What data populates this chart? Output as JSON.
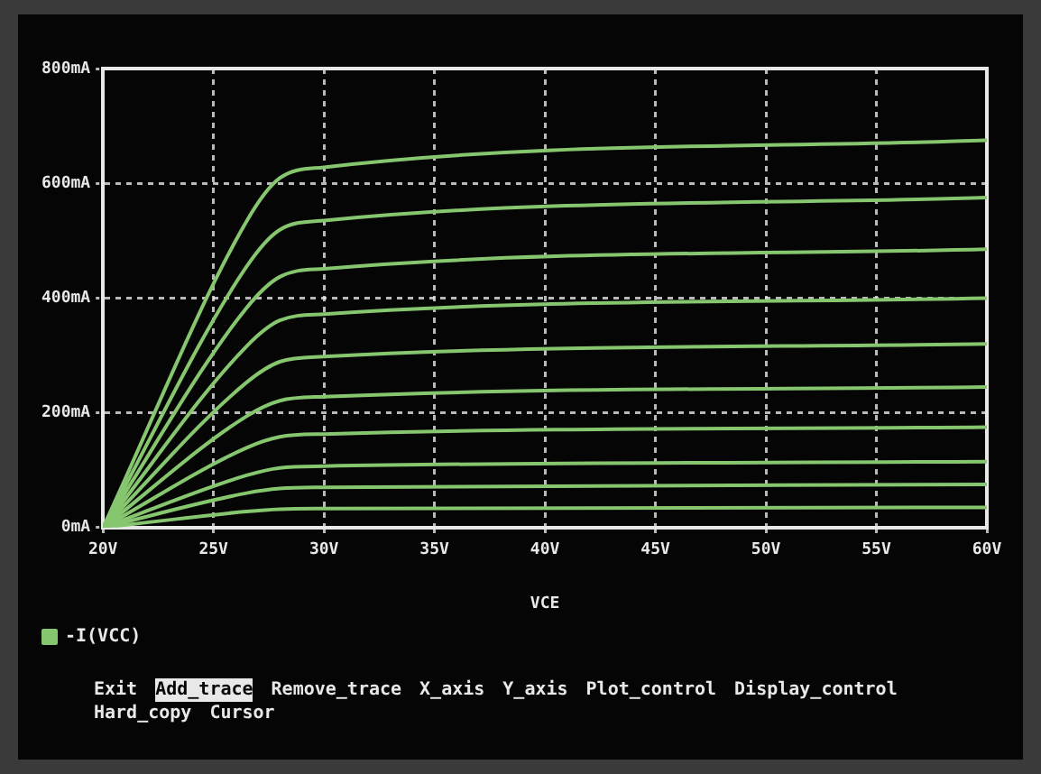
{
  "chart_data": {
    "type": "line",
    "xlabel": "VCE",
    "x": [
      20,
      26.5,
      28,
      30,
      60
    ],
    "series": [
      {
        "name": "-I(VCC)",
        "color": "#86c66e",
        "values": [
          0,
          534,
          609,
          628,
          675
        ]
      },
      {
        "color": "#86c66e",
        "values": [
          0,
          455,
          519,
          535,
          575
        ]
      },
      {
        "color": "#86c66e",
        "values": [
          0,
          383,
          437,
          451,
          485
        ]
      },
      {
        "color": "#86c66e",
        "values": [
          0,
          316,
          361,
          372,
          400
        ]
      },
      {
        "color": "#86c66e",
        "values": [
          0,
          253,
          289,
          298,
          320
        ]
      },
      {
        "color": "#86c66e",
        "values": [
          0,
          194,
          221,
          228,
          245
        ]
      },
      {
        "color": "#86c66e",
        "values": [
          0,
          139,
          158,
          163,
          175
        ]
      },
      {
        "color": "#86c66e",
        "values": [
          0,
          91,
          104,
          107,
          115
        ]
      },
      {
        "color": "#86c66e",
        "values": [
          0,
          60,
          68,
          70,
          75
        ]
      },
      {
        "color": "#86c66e",
        "values": [
          0,
          28,
          32,
          33,
          35
        ]
      }
    ],
    "xlim": [
      20,
      60
    ],
    "xticks": [
      {
        "value": 20,
        "label": "20V"
      },
      {
        "value": 25,
        "label": "25V"
      },
      {
        "value": 30,
        "label": "30V"
      },
      {
        "value": 35,
        "label": "35V"
      },
      {
        "value": 40,
        "label": "40V"
      },
      {
        "value": 45,
        "label": "45V"
      },
      {
        "value": 50,
        "label": "50V"
      },
      {
        "value": 55,
        "label": "55V"
      },
      {
        "value": 60,
        "label": "60V"
      }
    ],
    "ylim": [
      0,
      800
    ],
    "yticks": [
      {
        "value": 0,
        "label": "0mA"
      },
      {
        "value": 200,
        "label": "200mA"
      },
      {
        "value": 400,
        "label": "400mA"
      },
      {
        "value": 600,
        "label": "600mA"
      },
      {
        "value": 800,
        "label": "800mA"
      }
    ],
    "grid": true,
    "legend": "bottom left",
    "marker": "none",
    "line_style": "solid",
    "annotations": [
      "Exit",
      "Add_trace",
      "Remove_trace",
      "X_axis",
      "Y_axis",
      "Plot_control",
      "Display_control",
      "Hard_copy",
      "Cursor"
    ]
  }
}
